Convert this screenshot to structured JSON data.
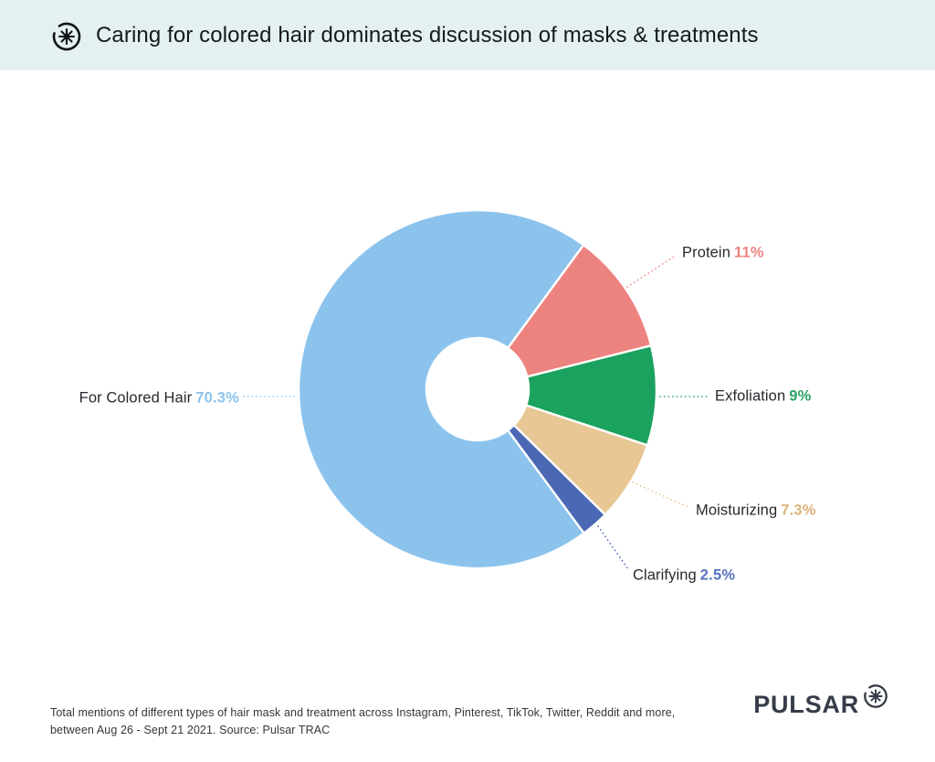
{
  "header": {
    "title": "Caring for colored hair dominates discussion of masks & treatments",
    "background_color": "#e4f1f0"
  },
  "chart_data": {
    "type": "pie",
    "variant": "donut",
    "title": "Caring for colored hair dominates discussion of masks & treatments",
    "start_angle_deg": 143.5,
    "inner_radius_ratio": 0.286,
    "legend_position": "outside-labels-with-dotted-leader-lines",
    "slices": [
      {
        "label": "For Colored Hair",
        "value": 70.3,
        "display": "70.3%",
        "color": "#8cc3ed",
        "value_color": "#8cc3ed"
      },
      {
        "label": "Protein",
        "value": 11,
        "display": "11%",
        "color": "#ed837f",
        "value_color": "#ed837f"
      },
      {
        "label": "Exfoliation",
        "value": 9,
        "display": "9%",
        "color": "#1aa25e",
        "value_color": "#2aa263"
      },
      {
        "label": "Moisturizing",
        "value": 7.3,
        "display": "7.3%",
        "color": "#e8c795",
        "value_color": "#dcb47c"
      },
      {
        "label": "Clarifying",
        "value": 2.5,
        "display": "2.5%",
        "color": "#4a68b4",
        "value_color": "#5773c0"
      }
    ]
  },
  "footer": {
    "caption_line1": "Total mentions of different types of hair mask and treatment across Instagram, Pinterest, TikTok, Twitter, Reddit and more,",
    "caption_line2": "between Aug 26 - Sept 21 2021. Source: Pulsar TRAC",
    "brand": "PULSAR"
  }
}
